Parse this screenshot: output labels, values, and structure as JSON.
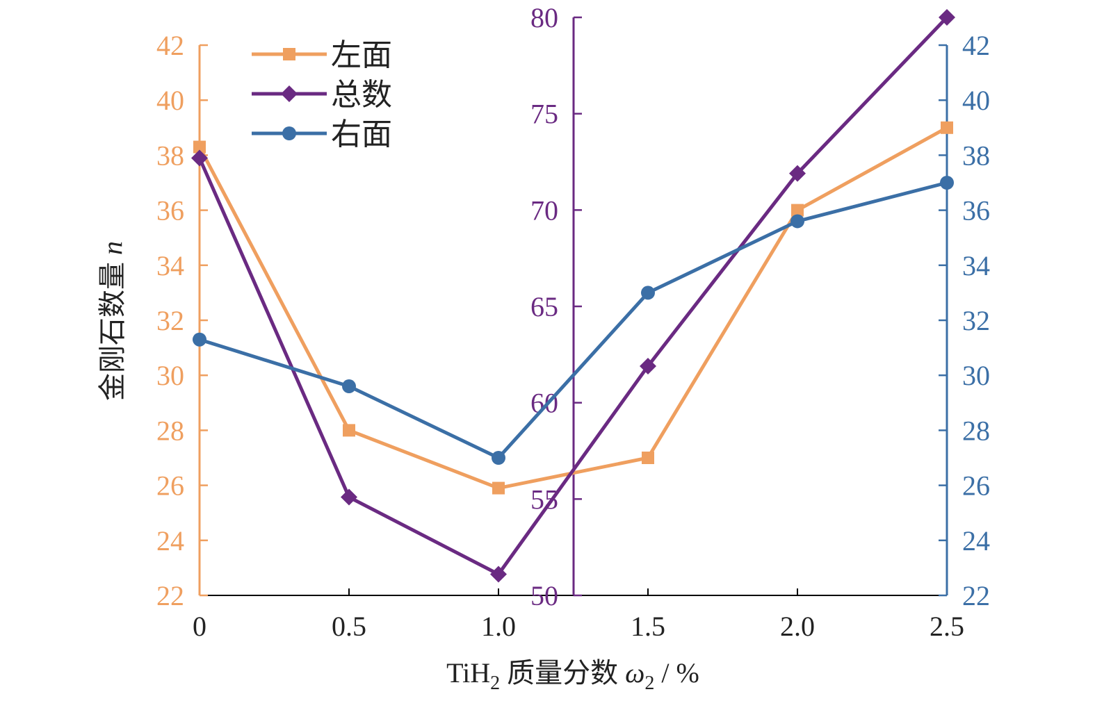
{
  "chart_data": {
    "type": "line",
    "x": [
      0,
      0.5,
      1.0,
      1.5,
      2.0,
      2.5
    ],
    "x_tick_labels": [
      "0",
      "0.5",
      "1.0",
      "1.5",
      "2.0",
      "2.5"
    ],
    "xlim": [
      0,
      2.5
    ],
    "xlabel": {
      "prefix": "TiH",
      "sub": "2",
      "middle": " 质量分数 ",
      "var": "ω",
      "var_sub": "2",
      "suffix": " / %"
    },
    "ylabel": {
      "text": "金刚石数量 ",
      "var": "n"
    },
    "axes": {
      "left": {
        "range": [
          22,
          42
        ],
        "ticks": [
          "22",
          "24",
          "26",
          "28",
          "30",
          "32",
          "34",
          "36",
          "38",
          "40",
          "42"
        ],
        "color": "#ef9f5f"
      },
      "middle": {
        "range": [
          50,
          80
        ],
        "ticks": [
          "50",
          "55",
          "60",
          "65",
          "70",
          "75",
          "80"
        ],
        "color": "#6a2a82"
      },
      "right": {
        "range": [
          22,
          42
        ],
        "ticks": [
          "22",
          "24",
          "26",
          "28",
          "30",
          "32",
          "34",
          "36",
          "38",
          "40",
          "42"
        ],
        "color": "#3b6fa6"
      }
    },
    "series": [
      {
        "name": "左面",
        "axis": "left",
        "marker": "square",
        "color": "#ef9f5f",
        "values": [
          38.3,
          28.0,
          25.9,
          27.0,
          36.0,
          39.0
        ]
      },
      {
        "name": "总数",
        "axis": "middle",
        "marker": "diamond",
        "color": "#6a2a82",
        "values": [
          72.7,
          55.1,
          51.1,
          61.9,
          71.9,
          80.0
        ]
      },
      {
        "name": "右面",
        "axis": "right",
        "marker": "circle",
        "color": "#3b6fa6",
        "values": [
          31.3,
          29.6,
          27.0,
          33.0,
          35.6,
          37.0
        ]
      }
    ],
    "legend_placement": "top-left",
    "grid": false
  }
}
